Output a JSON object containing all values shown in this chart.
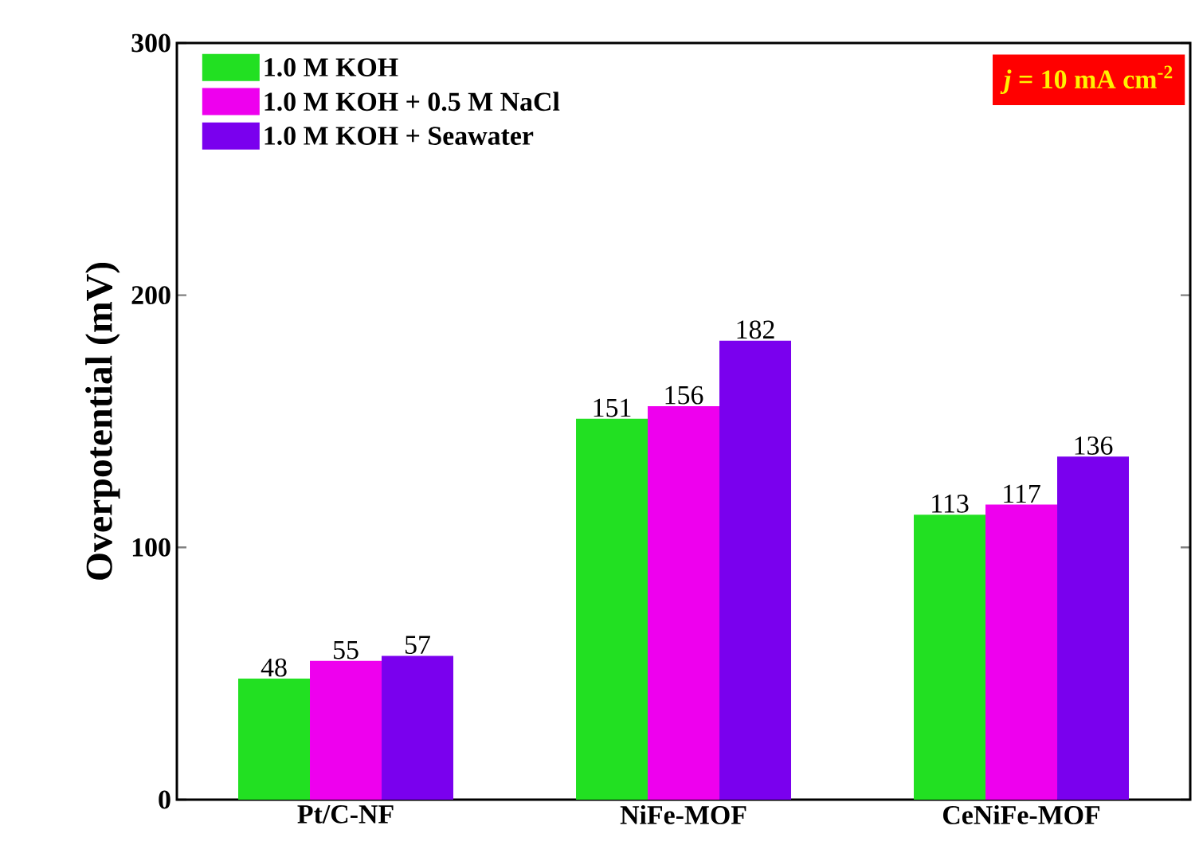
{
  "chart_data": {
    "type": "bar",
    "ylabel": "Overpotential (mV)",
    "categories": [
      "Pt/C-NF",
      "NiFe-MOF",
      "CeNiFe-MOF"
    ],
    "series": [
      {
        "name": "1.0 M KOH",
        "color": "#22e022",
        "values": [
          48,
          151,
          113
        ]
      },
      {
        "name": "1.0 M KOH + 0.5 M NaCl",
        "color": "#ee00ee",
        "values": [
          55,
          156,
          117
        ]
      },
      {
        "name": "1.0 M KOH + Seawater",
        "color": "#7a00ee",
        "values": [
          57,
          182,
          136
        ]
      }
    ],
    "ylim": [
      0,
      300
    ],
    "yticks": [
      0,
      100,
      200,
      300
    ],
    "grid": false,
    "legend": "top left",
    "data_labels": true,
    "annotations": [
      "*j* = 10 mA cm$^{-2}$"
    ]
  }
}
